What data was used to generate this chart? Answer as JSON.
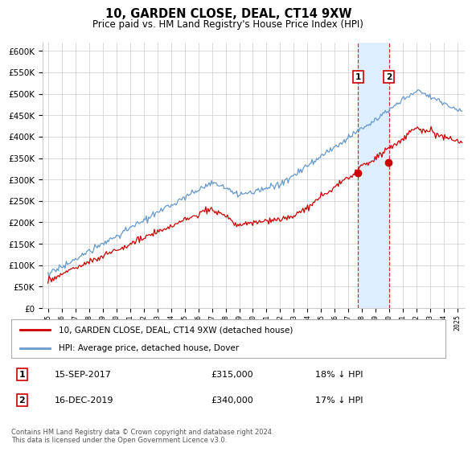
{
  "title": "10, GARDEN CLOSE, DEAL, CT14 9XW",
  "subtitle": "Price paid vs. HM Land Registry's House Price Index (HPI)",
  "ylim": [
    0,
    620000
  ],
  "yticks": [
    0,
    50000,
    100000,
    150000,
    200000,
    250000,
    300000,
    350000,
    400000,
    450000,
    500000,
    550000,
    600000
  ],
  "sale1": {
    "date_num": 2017.71,
    "price": 315000,
    "label": "1",
    "date_str": "15-SEP-2017",
    "pct": "18% ↓ HPI"
  },
  "sale2": {
    "date_num": 2019.96,
    "price": 340000,
    "label": "2",
    "date_str": "16-DEC-2019",
    "pct": "17% ↓ HPI"
  },
  "legend_red": "10, GARDEN CLOSE, DEAL, CT14 9XW (detached house)",
  "legend_blue": "HPI: Average price, detached house, Dover",
  "footnote": "Contains HM Land Registry data © Crown copyright and database right 2024.\nThis data is licensed under the Open Government Licence v3.0.",
  "red_color": "#cc0000",
  "blue_color": "#6699cc",
  "shade_color": "#ddeeff",
  "grid_color": "#cccccc"
}
